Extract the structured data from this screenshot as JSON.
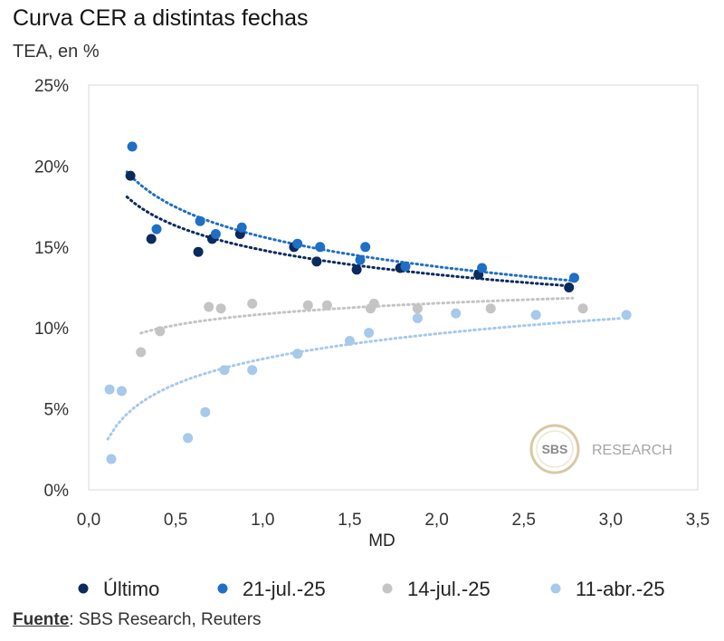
{
  "header": {
    "title": "Curva CER a distintas fechas",
    "subtitle": "TEA, en %"
  },
  "footer": {
    "source_label": "Fuente",
    "source_text": ": SBS Research, Reuters"
  },
  "watermark": {
    "logo_text": "SBS",
    "text": "RESEARCH",
    "ring_color": "#d8c9a6"
  },
  "chart_data": {
    "type": "scatter",
    "title": "Curva CER a distintas fechas",
    "subtitle": "TEA, en %",
    "xlabel": "MD",
    "ylabel": "",
    "xlim": [
      0,
      3.5
    ],
    "ylim": [
      0,
      25
    ],
    "x_ticks": [
      0,
      0.5,
      1.0,
      1.5,
      2.0,
      2.5,
      3.0,
      3.5
    ],
    "x_tick_labels": [
      "0,0",
      "0,5",
      "1,0",
      "1,5",
      "2,0",
      "2,5",
      "3,0",
      "3,5"
    ],
    "y_ticks": [
      0,
      5,
      10,
      15,
      20,
      25
    ],
    "y_tick_labels": [
      "0%",
      "5%",
      "10%",
      "15%",
      "20%",
      "25%"
    ],
    "grid": false,
    "legend_position": "bottom",
    "series": [
      {
        "name": "Último",
        "color": "#0b2a5e",
        "trendline": "logarithmic",
        "trend_x_range": [
          0.22,
          2.78
        ],
        "points": [
          [
            0.24,
            19.4
          ],
          [
            0.36,
            15.5
          ],
          [
            0.63,
            14.7
          ],
          [
            0.71,
            15.5
          ],
          [
            0.87,
            15.8
          ],
          [
            1.18,
            15.0
          ],
          [
            1.31,
            14.1
          ],
          [
            1.54,
            13.6
          ],
          [
            1.79,
            13.7
          ],
          [
            2.24,
            13.3
          ],
          [
            2.76,
            12.5
          ]
        ]
      },
      {
        "name": "21-jul.-25",
        "color": "#1f6fc4",
        "trendline": "logarithmic",
        "trend_x_range": [
          0.22,
          2.78
        ],
        "points": [
          [
            0.25,
            21.2
          ],
          [
            0.39,
            16.1
          ],
          [
            0.64,
            16.6
          ],
          [
            0.73,
            15.8
          ],
          [
            0.88,
            16.2
          ],
          [
            1.2,
            15.2
          ],
          [
            1.33,
            15.0
          ],
          [
            1.56,
            14.2
          ],
          [
            1.59,
            15.0
          ],
          [
            1.82,
            13.8
          ],
          [
            2.26,
            13.7
          ],
          [
            2.79,
            13.1
          ]
        ]
      },
      {
        "name": "14-jul.-25",
        "color": "#c4c4c4",
        "trendline": "logarithmic",
        "trend_x_range": [
          0.3,
          2.78
        ],
        "points": [
          [
            0.3,
            8.5
          ],
          [
            0.41,
            9.8
          ],
          [
            0.69,
            11.3
          ],
          [
            0.76,
            11.2
          ],
          [
            0.94,
            11.5
          ],
          [
            1.26,
            11.4
          ],
          [
            1.37,
            11.4
          ],
          [
            1.62,
            11.2
          ],
          [
            1.64,
            11.5
          ],
          [
            1.89,
            11.2
          ],
          [
            2.31,
            11.2
          ],
          [
            2.84,
            11.2
          ]
        ]
      },
      {
        "name": "11-abr.-25",
        "color": "#a6c9ec",
        "trendline": "logarithmic",
        "trend_x_range": [
          0.11,
          3.05
        ],
        "points": [
          [
            0.12,
            6.2
          ],
          [
            0.19,
            6.1
          ],
          [
            0.13,
            1.9
          ],
          [
            0.57,
            3.2
          ],
          [
            0.67,
            4.8
          ],
          [
            0.78,
            7.4
          ],
          [
            0.94,
            7.4
          ],
          [
            1.2,
            8.4
          ],
          [
            1.5,
            9.2
          ],
          [
            1.61,
            9.7
          ],
          [
            1.89,
            10.6
          ],
          [
            2.11,
            10.9
          ],
          [
            2.57,
            10.8
          ],
          [
            3.09,
            10.8
          ]
        ]
      }
    ]
  }
}
